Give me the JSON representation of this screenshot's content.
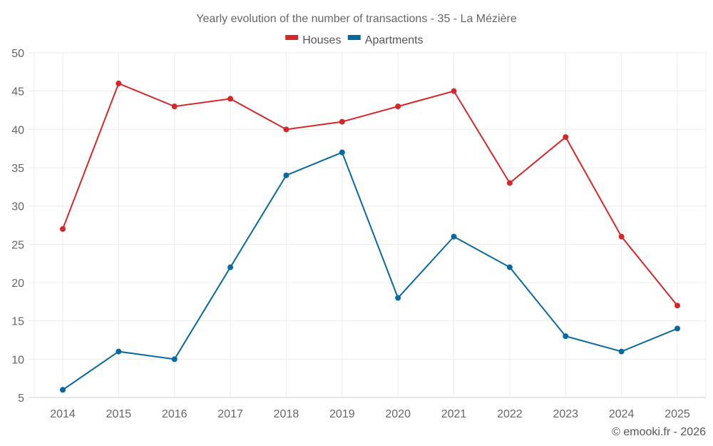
{
  "chart_data": {
    "type": "line",
    "title": "Yearly evolution of the number of transactions - 35 - La Mézière",
    "xlabel": "",
    "ylabel": "",
    "categories": [
      "2014",
      "2015",
      "2016",
      "2017",
      "2018",
      "2019",
      "2020",
      "2021",
      "2022",
      "2023",
      "2024",
      "2025"
    ],
    "series": [
      {
        "name": "Houses",
        "color": "#d62728",
        "values": [
          27,
          46,
          43,
          44,
          40,
          41,
          43,
          45,
          33,
          39,
          26,
          17
        ]
      },
      {
        "name": "Apartments",
        "color": "#0868a0",
        "values": [
          6,
          11,
          10,
          22,
          34,
          37,
          18,
          26,
          22,
          13,
          11,
          14
        ]
      }
    ],
    "ylim": [
      5,
      50
    ],
    "yticks": [
      "5",
      "10",
      "15",
      "20",
      "25",
      "30",
      "35",
      "40",
      "45",
      "50"
    ],
    "grid": true,
    "legend_position": "top-center",
    "credit": "© emooki.fr - 2026"
  }
}
